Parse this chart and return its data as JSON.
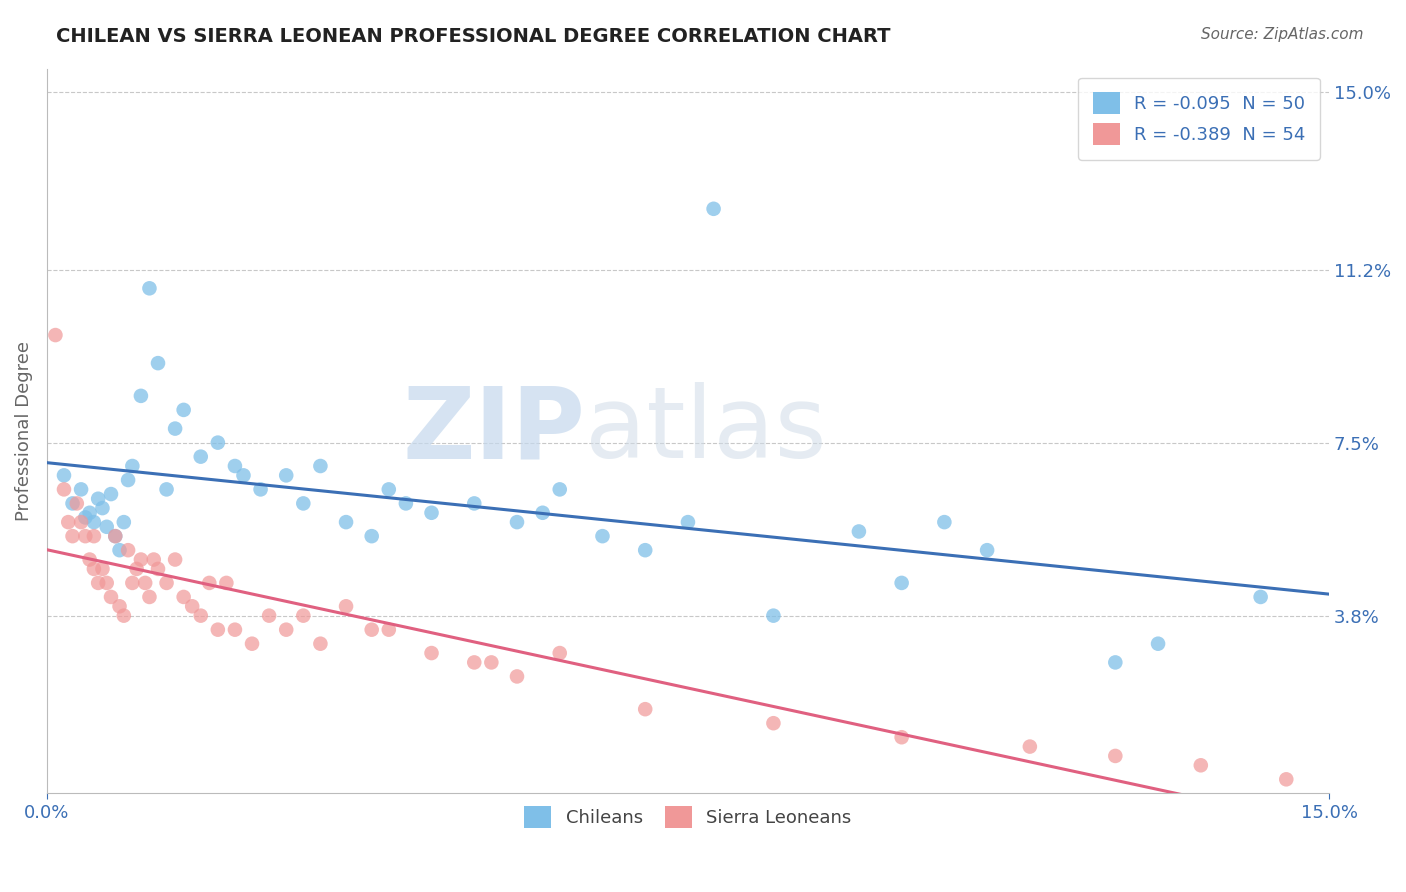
{
  "title": "CHILEAN VS SIERRA LEONEAN PROFESSIONAL DEGREE CORRELATION CHART",
  "source": "Source: ZipAtlas.com",
  "ylabel": "Professional Degree",
  "y_tick_labels": [
    "3.8%",
    "7.5%",
    "11.2%",
    "15.0%"
  ],
  "y_tick_values": [
    3.8,
    7.5,
    11.2,
    15.0
  ],
  "xlim": [
    0.0,
    15.0
  ],
  "ylim": [
    0.0,
    15.5
  ],
  "watermark_zip": "ZIP",
  "watermark_atlas": "atlas",
  "legend_entries": [
    {
      "label": "R = -0.095  N = 50",
      "color": "#a8c4e0"
    },
    {
      "label": "R = -0.389  N = 54",
      "color": "#f4a8b8"
    }
  ],
  "chilean_x": [
    0.2,
    0.3,
    0.4,
    0.45,
    0.5,
    0.55,
    0.6,
    0.65,
    0.7,
    0.75,
    0.8,
    0.85,
    0.9,
    0.95,
    1.0,
    1.1,
    1.2,
    1.3,
    1.5,
    1.6,
    1.8,
    2.0,
    2.2,
    2.5,
    2.8,
    3.0,
    3.2,
    3.5,
    4.0,
    4.2,
    4.5,
    5.0,
    5.5,
    5.8,
    6.5,
    7.0,
    7.5,
    8.5,
    9.5,
    10.5,
    11.0,
    12.5,
    14.2,
    1.4,
    2.3,
    3.8,
    6.0,
    7.8,
    10.0,
    13.0
  ],
  "chilean_y": [
    6.8,
    6.2,
    6.5,
    5.9,
    6.0,
    5.8,
    6.3,
    6.1,
    5.7,
    6.4,
    5.5,
    5.2,
    5.8,
    6.7,
    7.0,
    8.5,
    10.8,
    9.2,
    7.8,
    8.2,
    7.2,
    7.5,
    7.0,
    6.5,
    6.8,
    6.2,
    7.0,
    5.8,
    6.5,
    6.2,
    6.0,
    6.2,
    5.8,
    6.0,
    5.5,
    5.2,
    5.8,
    3.8,
    5.6,
    5.8,
    5.2,
    2.8,
    4.2,
    6.5,
    6.8,
    5.5,
    6.5,
    12.5,
    4.5,
    3.2
  ],
  "sierraleonean_x": [
    0.1,
    0.2,
    0.3,
    0.35,
    0.4,
    0.45,
    0.5,
    0.55,
    0.6,
    0.65,
    0.7,
    0.75,
    0.8,
    0.85,
    0.9,
    0.95,
    1.0,
    1.05,
    1.1,
    1.15,
    1.2,
    1.3,
    1.4,
    1.5,
    1.6,
    1.7,
    1.8,
    1.9,
    2.0,
    2.2,
    2.4,
    2.6,
    2.8,
    3.0,
    3.2,
    3.5,
    4.0,
    4.5,
    5.0,
    5.5,
    6.0,
    0.25,
    0.55,
    1.25,
    2.1,
    3.8,
    5.2,
    7.0,
    8.5,
    10.0,
    11.5,
    12.5,
    13.5,
    14.5
  ],
  "sierraleonean_y": [
    9.8,
    6.5,
    5.5,
    6.2,
    5.8,
    5.5,
    5.0,
    4.8,
    4.5,
    4.8,
    4.5,
    4.2,
    5.5,
    4.0,
    3.8,
    5.2,
    4.5,
    4.8,
    5.0,
    4.5,
    4.2,
    4.8,
    4.5,
    5.0,
    4.2,
    4.0,
    3.8,
    4.5,
    3.5,
    3.5,
    3.2,
    3.8,
    3.5,
    3.8,
    3.2,
    4.0,
    3.5,
    3.0,
    2.8,
    2.5,
    3.0,
    5.8,
    5.5,
    5.0,
    4.5,
    3.5,
    2.8,
    1.8,
    1.5,
    1.2,
    1.0,
    0.8,
    0.6,
    0.3
  ],
  "blue_color": "#7fbfe8",
  "pink_color": "#f09898",
  "blue_line_color": "#3b6fb5",
  "pink_line_color": "#e06080",
  "background_color": "#ffffff",
  "grid_color": "#c8c8c8",
  "title_color": "#222222",
  "axis_label_color": "#3b6fb5",
  "source_color": "#666666",
  "bottom_label_color": "#444444"
}
